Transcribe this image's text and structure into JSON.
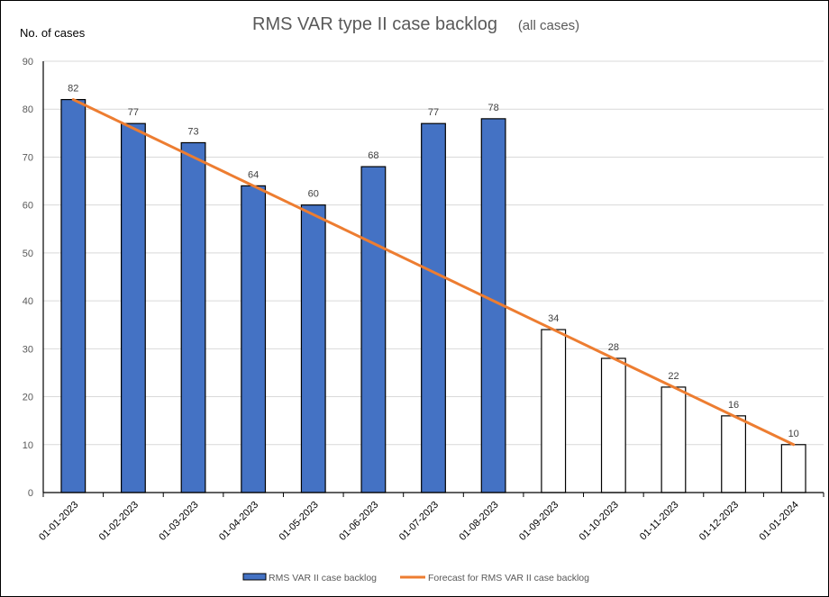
{
  "chart_data": {
    "type": "bar",
    "title": "RMS VAR type II case backlog",
    "subtitle": "(all cases)",
    "ylabel": "No. of cases",
    "xlabel": "",
    "ylim": [
      0,
      90
    ],
    "yticks": [
      0,
      10,
      20,
      30,
      40,
      50,
      60,
      70,
      80,
      90
    ],
    "grid": true,
    "categories": [
      "01-01-2023",
      "01-02-2023",
      "01-03-2023",
      "01-04-2023",
      "01-05-2023",
      "01-06-2023",
      "01-07-2023",
      "01-08-2023",
      "01-09-2023",
      "01-10-2023",
      "01-11-2023",
      "01-12-2023",
      "01-01-2024"
    ],
    "series": [
      {
        "name": "RMS VAR II case backlog",
        "type": "bar",
        "values": [
          82,
          77,
          73,
          64,
          60,
          68,
          77,
          78,
          34,
          28,
          22,
          16,
          10
        ],
        "filled": [
          true,
          true,
          true,
          true,
          true,
          true,
          true,
          true,
          false,
          false,
          false,
          false,
          false
        ],
        "color": "#4472C4",
        "unfilled_color": "#FFFFFF",
        "border_color": "#000000"
      },
      {
        "name": "Forecast for RMS VAR II case backlog",
        "type": "line",
        "values": [
          82,
          76,
          70,
          64,
          58,
          52,
          46,
          40,
          34,
          28,
          22,
          16,
          10
        ],
        "color": "#ED7D31"
      }
    ],
    "legend_position": "bottom"
  }
}
